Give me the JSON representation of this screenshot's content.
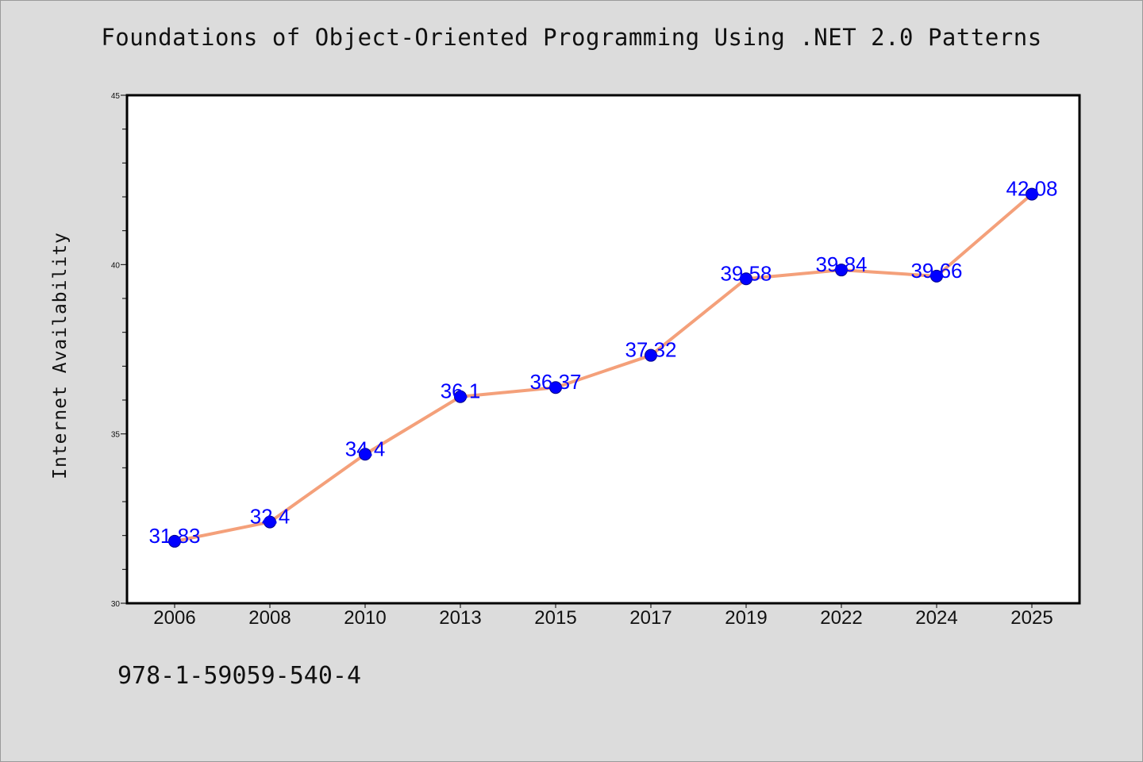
{
  "chart_data": {
    "type": "line",
    "title": "Foundations of Object-Oriented Programming Using .NET 2.0 Patterns",
    "ylabel": "Internet Availability",
    "xlabel": "",
    "categories": [
      "2006",
      "2008",
      "2010",
      "2013",
      "2015",
      "2017",
      "2019",
      "2022",
      "2024",
      "2025"
    ],
    "values": [
      31.83,
      32.4,
      34.4,
      36.1,
      36.37,
      37.32,
      39.58,
      39.84,
      39.66,
      42.08
    ],
    "data_labels": [
      "31.83",
      "32.4",
      "34.4",
      "36.1",
      "36.37",
      "37.32",
      "39.58",
      "39.84",
      "39.66",
      "42.08"
    ],
    "ylim": [
      30,
      45
    ],
    "yticks": [
      "30",
      "35",
      "40",
      "45"
    ],
    "grid": false,
    "line_color": "#f4a07a",
    "marker_color": "#0000ff",
    "label_color": "#0000ff"
  },
  "footnote": "978-1-59059-540-4"
}
